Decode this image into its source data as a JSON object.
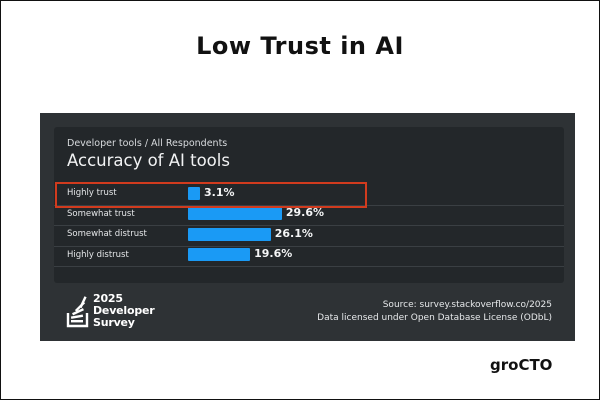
{
  "headline": "Low Trust in AI",
  "breadcrumb": "Developer tools / All Respondents",
  "chart_data": {
    "type": "bar",
    "orientation": "horizontal",
    "title": "Accuracy of AI tools",
    "categories": [
      "Highly trust",
      "Somewhat trust",
      "Somewhat distrust",
      "Highly distrust"
    ],
    "values": [
      3.1,
      29.6,
      26.1,
      19.6
    ],
    "value_labels": [
      "3.1%",
      "29.6%",
      "26.1%",
      "19.6%"
    ],
    "unit": "%",
    "bar_color": "#1a9af5",
    "highlighted_category": "Highly trust",
    "highlight_color": "#d13b1e",
    "grid": false,
    "legend": "none"
  },
  "logo": {
    "icon": "stack-overflow-icon",
    "lines": [
      "2025",
      "Developer",
      "Survey"
    ]
  },
  "source": {
    "line1": "Source: survey.stackoverflow.co/2025",
    "line2": "Data licensed under Open Database License (ODbL)"
  },
  "brand": "groCTO",
  "colors": {
    "panel": "#2e3235",
    "card": "#23272a",
    "text": "#f2f3f4"
  }
}
